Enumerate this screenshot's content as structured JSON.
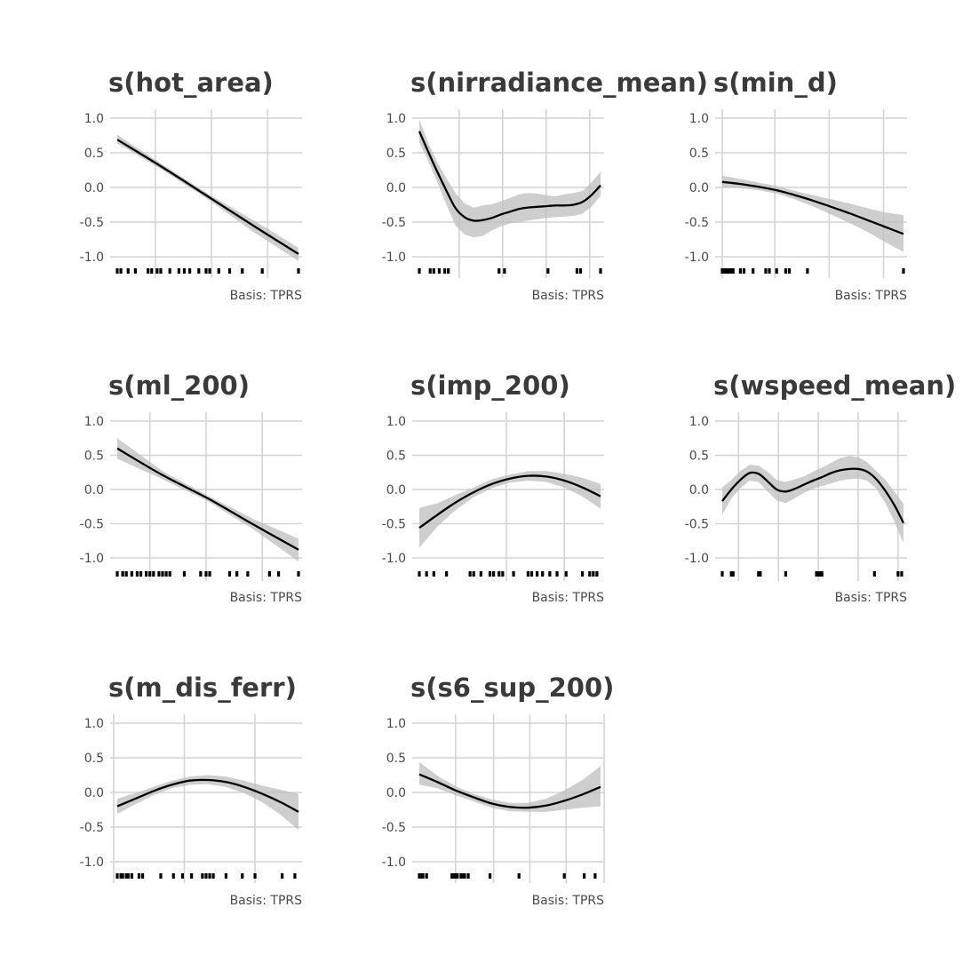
{
  "chart_data": [
    {
      "type": "line",
      "title": "s(hot_area)",
      "caption": "Basis: TPRS",
      "ylim": [
        -1.2,
        1.1
      ],
      "yticks": [
        1.0,
        0.5,
        0.0,
        -0.5,
        -1.0
      ],
      "ytick_labels": [
        "1.0",
        "0.5",
        "0.0",
        "-0.5",
        "-1.0"
      ],
      "xlim": [
        0,
        1
      ],
      "x_gridlines": [
        0.21,
        0.52,
        0.83
      ],
      "series": [
        {
          "x": [
            0.0,
            0.25,
            0.5,
            0.75,
            1.0
          ],
          "y": [
            0.69,
            0.29,
            -0.13,
            -0.55,
            -0.96
          ],
          "lower": [
            0.64,
            0.25,
            -0.17,
            -0.64,
            -1.06
          ],
          "upper": [
            0.76,
            0.33,
            -0.09,
            -0.47,
            -0.87
          ]
        }
      ],
      "rug": [
        0.0,
        0.02,
        0.06,
        0.1,
        0.17,
        0.19,
        0.22,
        0.24,
        0.29,
        0.34,
        0.37,
        0.4,
        0.45,
        0.49,
        0.51,
        0.56,
        0.62,
        0.69,
        0.8,
        1.0
      ]
    },
    {
      "type": "line",
      "title": "s(nirradiance_mean)",
      "caption": "Basis: TPRS",
      "ylim": [
        -1.2,
        1.1
      ],
      "yticks": [
        1.0,
        0.5,
        0.0,
        -0.5,
        -1.0
      ],
      "ytick_labels": [
        "1.0",
        "0.5",
        "0.0",
        "-0.5",
        "-1.0"
      ],
      "xlim": [
        0,
        1
      ],
      "x_gridlines": [
        0.22,
        0.46,
        0.7,
        0.94
      ],
      "series": [
        {
          "x": [
            0.0,
            0.05,
            0.1,
            0.15,
            0.2,
            0.25,
            0.3,
            0.35,
            0.4,
            0.45,
            0.5,
            0.55,
            0.6,
            0.65,
            0.7,
            0.75,
            0.8,
            0.85,
            0.9,
            0.95,
            1.0
          ],
          "y": [
            0.81,
            0.51,
            0.22,
            -0.05,
            -0.3,
            -0.43,
            -0.48,
            -0.47,
            -0.44,
            -0.39,
            -0.35,
            -0.31,
            -0.29,
            -0.28,
            -0.27,
            -0.26,
            -0.26,
            -0.25,
            -0.21,
            -0.11,
            0.03
          ],
          "lower": [
            0.65,
            0.38,
            0.07,
            -0.25,
            -0.55,
            -0.68,
            -0.72,
            -0.7,
            -0.62,
            -0.56,
            -0.52,
            -0.5,
            -0.48,
            -0.46,
            -0.44,
            -0.43,
            -0.42,
            -0.41,
            -0.38,
            -0.28,
            -0.12
          ],
          "upper": [
            0.98,
            0.64,
            0.36,
            0.13,
            -0.08,
            -0.23,
            -0.29,
            -0.26,
            -0.24,
            -0.2,
            -0.15,
            -0.1,
            -0.08,
            -0.09,
            -0.11,
            -0.13,
            -0.1,
            -0.08,
            -0.05,
            0.07,
            0.23
          ]
        }
      ],
      "rug": [
        0.0,
        0.06,
        0.08,
        0.11,
        0.14,
        0.16,
        0.44,
        0.47,
        0.71,
        0.87,
        0.89,
        1.0
      ]
    },
    {
      "type": "line",
      "title": "s(min_d)",
      "caption": "Basis: TPRS",
      "ylim": [
        -1.2,
        1.1
      ],
      "yticks": [
        1.0,
        0.5,
        0.0,
        -0.5,
        -1.0
      ],
      "ytick_labels": [
        "1.0",
        "0.5",
        "0.0",
        "-0.5",
        "-1.0"
      ],
      "xlim": [
        0,
        1
      ],
      "x_gridlines": [
        0.0,
        0.29,
        0.59,
        0.89
      ],
      "series": [
        {
          "x": [
            0.0,
            0.1,
            0.2,
            0.3,
            0.4,
            0.5,
            0.6,
            0.7,
            0.8,
            0.9,
            1.0
          ],
          "y": [
            0.08,
            0.05,
            0.01,
            -0.04,
            -0.11,
            -0.19,
            -0.28,
            -0.37,
            -0.47,
            -0.57,
            -0.67
          ],
          "lower": [
            0.0,
            -0.01,
            -0.04,
            -0.09,
            -0.17,
            -0.27,
            -0.39,
            -0.51,
            -0.64,
            -0.79,
            -0.93
          ],
          "upper": [
            0.17,
            0.12,
            0.07,
            0.02,
            -0.05,
            -0.11,
            -0.17,
            -0.23,
            -0.3,
            -0.36,
            -0.4
          ]
        }
      ],
      "rug": [
        0.0,
        0.01,
        0.02,
        0.03,
        0.04,
        0.05,
        0.06,
        0.1,
        0.12,
        0.17,
        0.24,
        0.26,
        0.3,
        0.35,
        0.37,
        0.47,
        1.0
      ]
    },
    {
      "type": "line",
      "title": "s(ml_200)",
      "caption": "Basis: TPRS",
      "ylim": [
        -1.2,
        1.1
      ],
      "yticks": [
        1.0,
        0.5,
        0.0,
        -0.5,
        -1.0
      ],
      "ytick_labels": [
        "1.0",
        "0.5",
        "0.0",
        "-0.5",
        "-1.0"
      ],
      "xlim": [
        0,
        1
      ],
      "x_gridlines": [
        0.18,
        0.49,
        0.8
      ],
      "series": [
        {
          "x": [
            0.0,
            0.25,
            0.5,
            0.75,
            1.0
          ],
          "y": [
            0.6,
            0.21,
            -0.13,
            -0.51,
            -0.88
          ],
          "lower": [
            0.45,
            0.15,
            -0.17,
            -0.58,
            -1.05
          ],
          "upper": [
            0.75,
            0.27,
            -0.09,
            -0.43,
            -0.72
          ]
        }
      ],
      "rug": [
        0.0,
        0.03,
        0.05,
        0.08,
        0.11,
        0.13,
        0.16,
        0.18,
        0.2,
        0.23,
        0.25,
        0.27,
        0.29,
        0.37,
        0.46,
        0.49,
        0.51,
        0.62,
        0.66,
        0.72,
        0.84,
        0.89,
        1.0
      ]
    },
    {
      "type": "line",
      "title": "s(imp_200)",
      "caption": "Basis: TPRS",
      "ylim": [
        -1.2,
        1.1
      ],
      "yticks": [
        1.0,
        0.5,
        0.0,
        -0.5,
        -1.0
      ],
      "ytick_labels": [
        "1.0",
        "0.5",
        "0.0",
        "-0.5",
        "-1.0"
      ],
      "xlim": [
        0,
        1
      ],
      "x_gridlines": [
        0.48,
        0.8
      ],
      "series": [
        {
          "x": [
            0.0,
            0.1,
            0.2,
            0.3,
            0.4,
            0.5,
            0.6,
            0.7,
            0.8,
            0.9,
            1.0
          ],
          "y": [
            -0.56,
            -0.37,
            -0.19,
            -0.04,
            0.08,
            0.16,
            0.2,
            0.19,
            0.13,
            0.03,
            -0.1
          ],
          "lower": [
            -0.85,
            -0.54,
            -0.3,
            -0.11,
            0.02,
            0.1,
            0.13,
            0.11,
            0.03,
            -0.1,
            -0.28
          ],
          "upper": [
            -0.27,
            -0.2,
            -0.08,
            0.03,
            0.15,
            0.22,
            0.27,
            0.27,
            0.23,
            0.17,
            0.08
          ]
        }
      ],
      "rug": [
        0.0,
        0.04,
        0.08,
        0.15,
        0.28,
        0.3,
        0.34,
        0.39,
        0.41,
        0.44,
        0.46,
        0.52,
        0.6,
        0.62,
        0.65,
        0.68,
        0.72,
        0.76,
        0.81,
        0.9,
        0.94,
        0.96,
        0.98
      ]
    },
    {
      "type": "line",
      "title": "s(wspeed_mean)",
      "caption": "Basis: TPRS",
      "ylim": [
        -1.2,
        1.1
      ],
      "yticks": [
        1.0,
        0.5,
        0.0,
        -0.5,
        -1.0
      ],
      "ytick_labels": [
        "1.0",
        "0.5",
        "0.0",
        "-0.5",
        "-1.0"
      ],
      "xlim": [
        0,
        1
      ],
      "x_gridlines": [
        0.09,
        0.31,
        0.53,
        0.75,
        0.97
      ],
      "series": [
        {
          "x": [
            0.0,
            0.05,
            0.1,
            0.15,
            0.2,
            0.25,
            0.3,
            0.35,
            0.4,
            0.45,
            0.5,
            0.55,
            0.6,
            0.65,
            0.7,
            0.75,
            0.8,
            0.85,
            0.9,
            0.95,
            1.0
          ],
          "y": [
            -0.17,
            0.0,
            0.14,
            0.24,
            0.23,
            0.12,
            0.0,
            -0.03,
            0.01,
            0.07,
            0.13,
            0.18,
            0.24,
            0.28,
            0.3,
            0.3,
            0.26,
            0.15,
            -0.02,
            -0.23,
            -0.49
          ],
          "lower": [
            -0.37,
            -0.13,
            0.02,
            0.13,
            0.11,
            -0.03,
            -0.16,
            -0.2,
            -0.13,
            -0.05,
            0.01,
            0.05,
            0.09,
            0.13,
            0.15,
            0.16,
            0.13,
            0.01,
            -0.2,
            -0.47,
            -0.78
          ],
          "upper": [
            0.03,
            0.14,
            0.27,
            0.36,
            0.35,
            0.26,
            0.14,
            0.11,
            0.15,
            0.19,
            0.26,
            0.32,
            0.39,
            0.46,
            0.49,
            0.47,
            0.4,
            0.27,
            0.14,
            -0.03,
            -0.21
          ]
        }
      ],
      "rug": [
        0.0,
        0.05,
        0.06,
        0.2,
        0.21,
        0.35,
        0.52,
        0.53,
        0.54,
        0.55,
        0.84,
        0.97,
        0.99
      ]
    },
    {
      "type": "line",
      "title": "s(m_dis_ferr)",
      "caption": "Basis: TPRS",
      "ylim": [
        -1.2,
        1.1
      ],
      "yticks": [
        1.0,
        0.5,
        0.0,
        -0.5,
        -1.0
      ],
      "ytick_labels": [
        "1.0",
        "0.5",
        "0.0",
        "-0.5",
        "-1.0"
      ],
      "xlim": [
        0,
        1
      ],
      "x_gridlines": [
        -0.02,
        0.37,
        0.76
      ],
      "series": [
        {
          "x": [
            0.0,
            0.1,
            0.2,
            0.3,
            0.4,
            0.5,
            0.6,
            0.7,
            0.8,
            0.9,
            1.0
          ],
          "y": [
            -0.2,
            -0.09,
            0.02,
            0.11,
            0.17,
            0.18,
            0.15,
            0.08,
            -0.02,
            -0.14,
            -0.28
          ],
          "lower": [
            -0.31,
            -0.17,
            -0.04,
            0.06,
            0.11,
            0.12,
            0.08,
            -0.01,
            -0.14,
            -0.32,
            -0.54
          ],
          "upper": [
            -0.09,
            -0.01,
            0.08,
            0.17,
            0.23,
            0.25,
            0.23,
            0.17,
            0.1,
            0.04,
            -0.02
          ]
        }
      ],
      "rug": [
        0.0,
        0.02,
        0.03,
        0.05,
        0.06,
        0.08,
        0.12,
        0.14,
        0.24,
        0.31,
        0.36,
        0.41,
        0.47,
        0.49,
        0.51,
        0.53,
        0.6,
        0.69,
        0.76,
        0.91,
        0.98
      ]
    },
    {
      "type": "line",
      "title": "s(s6_sup_200)",
      "caption": "Basis: TPRS",
      "ylim": [
        -1.2,
        1.1
      ],
      "yticks": [
        1.0,
        0.5,
        0.0,
        -0.5,
        -1.0
      ],
      "ytick_labels": [
        "1.0",
        "0.5",
        "0.0",
        "-0.5",
        "-1.0"
      ],
      "xlim": [
        0,
        1
      ],
      "x_gridlines": [
        0.2,
        0.41,
        0.61,
        0.81,
        1.02
      ],
      "series": [
        {
          "x": [
            0.0,
            0.1,
            0.2,
            0.3,
            0.4,
            0.5,
            0.6,
            0.7,
            0.8,
            0.9,
            1.0
          ],
          "y": [
            0.26,
            0.15,
            0.03,
            -0.07,
            -0.16,
            -0.21,
            -0.22,
            -0.19,
            -0.12,
            -0.03,
            0.08
          ],
          "lower": [
            0.11,
            0.06,
            -0.04,
            -0.13,
            -0.22,
            -0.27,
            -0.28,
            -0.28,
            -0.25,
            -0.22,
            -0.2
          ],
          "upper": [
            0.44,
            0.24,
            0.09,
            -0.02,
            -0.1,
            -0.15,
            -0.15,
            -0.09,
            0.03,
            0.18,
            0.38
          ]
        }
      ],
      "rug": [
        0.0,
        0.01,
        0.02,
        0.04,
        0.18,
        0.19,
        0.2,
        0.21,
        0.23,
        0.24,
        0.25,
        0.27,
        0.39,
        0.55,
        0.8,
        0.91,
        0.97
      ]
    }
  ]
}
